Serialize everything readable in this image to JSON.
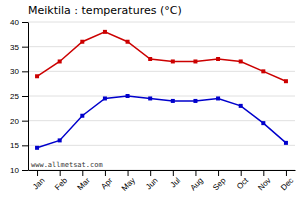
{
  "chart_data": {
    "type": "line",
    "title": "Meiktila : temperatures (°C)",
    "categories": [
      "Jan",
      "Feb",
      "Mar",
      "Apr",
      "May",
      "Jun",
      "Jul",
      "Aug",
      "Sep",
      "Oct",
      "Nov",
      "Dec"
    ],
    "series": [
      {
        "color": "#cc0000",
        "marker": "square",
        "values": [
          29,
          32,
          36,
          38,
          36,
          32.5,
          32,
          32,
          32.5,
          32,
          30,
          28
        ]
      },
      {
        "color": "#0000cc",
        "marker": "square",
        "values": [
          14.5,
          16,
          21,
          24.5,
          25,
          24.5,
          24,
          24,
          24.5,
          23,
          19.5,
          15.5
        ]
      }
    ],
    "ylim": [
      10,
      40
    ],
    "yticks": [
      10,
      15,
      20,
      25,
      30,
      35,
      40
    ],
    "grid": true,
    "annotations": [
      "www.allmetsat.com"
    ]
  }
}
